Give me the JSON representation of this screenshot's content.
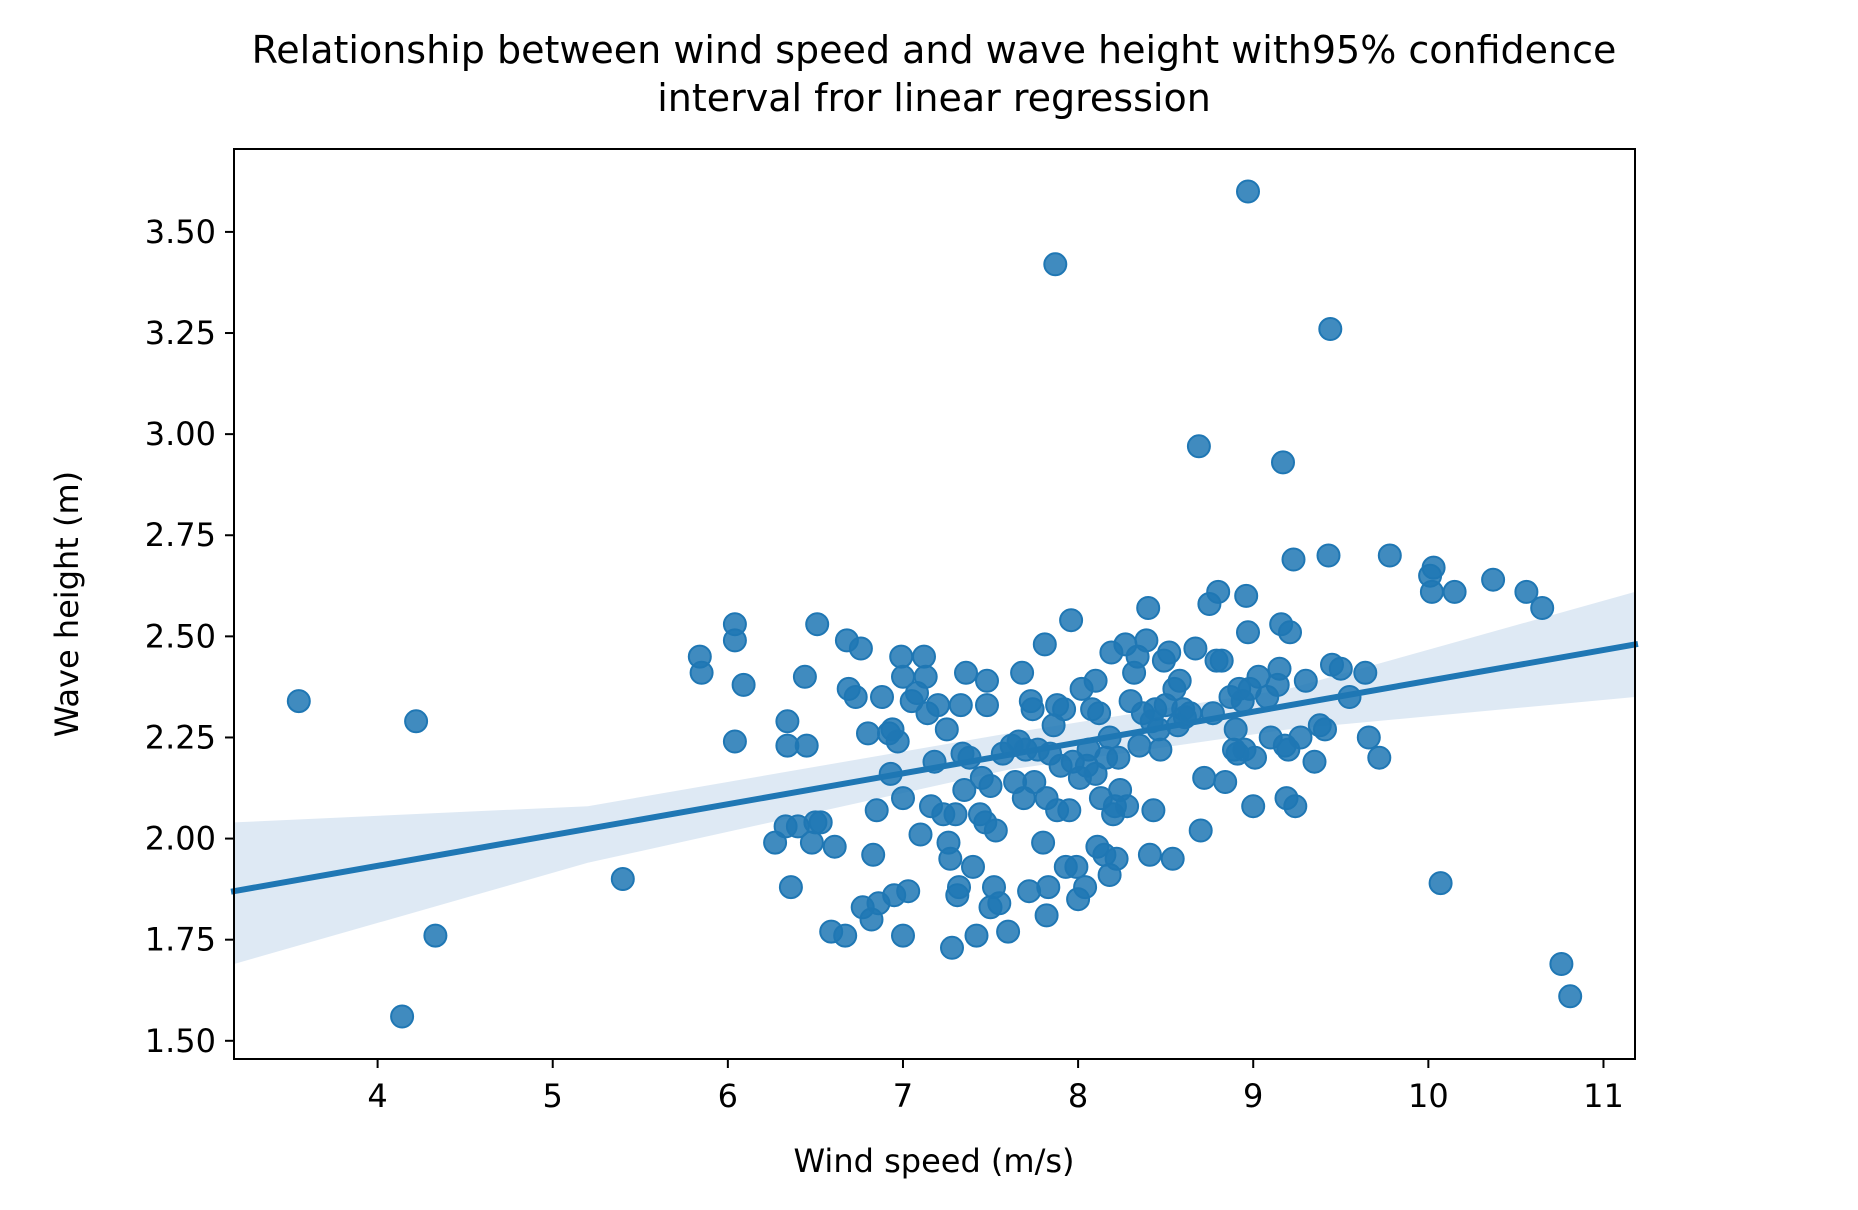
{
  "chart_data": {
    "type": "scatter",
    "title_lines": [
      "Relationship between wind speed and wave height with95% confidence",
      "interval fror linear regression"
    ],
    "xlabel": "Wind speed (m/s)",
    "ylabel": "Wave height (m)",
    "xlim": [
      3.18,
      11.18
    ],
    "ylim": [
      1.455,
      3.705
    ],
    "xticks": [
      4,
      5,
      6,
      7,
      8,
      9,
      10,
      11
    ],
    "xtick_labels": [
      "4",
      "5",
      "6",
      "7",
      "8",
      "9",
      "10",
      "11"
    ],
    "yticks": [
      1.5,
      1.75,
      2.0,
      2.25,
      2.5,
      2.75,
      3.0,
      3.25,
      3.5
    ],
    "ytick_labels": [
      "1.50",
      "1.75",
      "2.00",
      "2.25",
      "2.50",
      "2.75",
      "3.00",
      "3.25",
      "3.50"
    ],
    "grid": false,
    "colors": {
      "points": "#1f77b4",
      "line": "#1f77b4",
      "ci_band": "#c8daec"
    },
    "regression": {
      "x": [
        3.18,
        11.18
      ],
      "y": [
        1.87,
        2.48
      ]
    },
    "confidence_interval": {
      "level": "95%",
      "x": [
        3.18,
        5.2,
        7.6,
        9.2,
        11.18
      ],
      "lower": [
        1.69,
        1.94,
        2.17,
        2.27,
        2.35
      ],
      "upper": [
        2.04,
        2.08,
        2.26,
        2.37,
        2.61
      ]
    },
    "points": [
      [
        3.55,
        2.34
      ],
      [
        4.22,
        2.29
      ],
      [
        4.14,
        1.56
      ],
      [
        4.33,
        1.76
      ],
      [
        5.4,
        1.9
      ],
      [
        5.84,
        2.45
      ],
      [
        5.85,
        2.41
      ],
      [
        6.04,
        2.53
      ],
      [
        6.04,
        2.49
      ],
      [
        6.04,
        2.24
      ],
      [
        6.09,
        2.38
      ],
      [
        6.27,
        1.99
      ],
      [
        6.33,
        2.03
      ],
      [
        6.34,
        2.29
      ],
      [
        6.34,
        2.23
      ],
      [
        6.36,
        1.88
      ],
      [
        6.4,
        2.03
      ],
      [
        6.44,
        2.4
      ],
      [
        6.45,
        2.23
      ],
      [
        6.48,
        1.99
      ],
      [
        6.5,
        2.04
      ],
      [
        6.51,
        2.53
      ],
      [
        6.53,
        2.04
      ],
      [
        6.59,
        1.77
      ],
      [
        6.61,
        1.98
      ],
      [
        6.67,
        1.76
      ],
      [
        6.68,
        2.49
      ],
      [
        6.69,
        2.37
      ],
      [
        6.73,
        2.35
      ],
      [
        6.76,
        2.47
      ],
      [
        6.77,
        1.83
      ],
      [
        6.8,
        2.26
      ],
      [
        6.82,
        1.8
      ],
      [
        6.83,
        1.96
      ],
      [
        6.85,
        2.07
      ],
      [
        6.86,
        1.84
      ],
      [
        6.88,
        2.35
      ],
      [
        6.92,
        2.26
      ],
      [
        6.93,
        2.16
      ],
      [
        6.94,
        2.27
      ],
      [
        6.95,
        1.86
      ],
      [
        6.97,
        2.24
      ],
      [
        6.99,
        2.45
      ],
      [
        7.0,
        2.4
      ],
      [
        7.0,
        2.1
      ],
      [
        7.0,
        1.76
      ],
      [
        7.03,
        1.87
      ],
      [
        7.05,
        2.34
      ],
      [
        7.08,
        2.36
      ],
      [
        7.1,
        2.01
      ],
      [
        7.12,
        2.45
      ],
      [
        7.13,
        2.4
      ],
      [
        7.14,
        2.31
      ],
      [
        7.16,
        2.08
      ],
      [
        7.18,
        2.19
      ],
      [
        7.2,
        2.33
      ],
      [
        7.23,
        2.06
      ],
      [
        7.25,
        2.27
      ],
      [
        7.26,
        1.99
      ],
      [
        7.27,
        1.95
      ],
      [
        7.28,
        1.73
      ],
      [
        7.3,
        2.06
      ],
      [
        7.31,
        1.86
      ],
      [
        7.32,
        1.88
      ],
      [
        7.33,
        2.33
      ],
      [
        7.34,
        2.21
      ],
      [
        7.35,
        2.12
      ],
      [
        7.36,
        2.41
      ],
      [
        7.38,
        2.2
      ],
      [
        7.4,
        1.93
      ],
      [
        7.42,
        1.76
      ],
      [
        7.44,
        2.06
      ],
      [
        7.45,
        2.15
      ],
      [
        7.47,
        2.04
      ],
      [
        7.48,
        2.39
      ],
      [
        7.48,
        2.33
      ],
      [
        7.5,
        2.13
      ],
      [
        7.5,
        1.83
      ],
      [
        7.52,
        1.88
      ],
      [
        7.53,
        2.02
      ],
      [
        7.55,
        1.84
      ],
      [
        7.57,
        2.21
      ],
      [
        7.6,
        1.77
      ],
      [
        7.62,
        2.23
      ],
      [
        7.64,
        2.14
      ],
      [
        7.66,
        2.24
      ],
      [
        7.68,
        2.41
      ],
      [
        7.69,
        2.1
      ],
      [
        7.7,
        2.22
      ],
      [
        7.72,
        1.87
      ],
      [
        7.73,
        2.34
      ],
      [
        7.74,
        2.32
      ],
      [
        7.75,
        2.14
      ],
      [
        7.77,
        2.22
      ],
      [
        7.8,
        1.99
      ],
      [
        7.81,
        2.48
      ],
      [
        7.82,
        2.1
      ],
      [
        7.82,
        1.81
      ],
      [
        7.83,
        1.88
      ],
      [
        7.84,
        2.21
      ],
      [
        7.86,
        2.28
      ],
      [
        7.87,
        3.42
      ],
      [
        7.88,
        2.33
      ],
      [
        7.88,
        2.07
      ],
      [
        7.9,
        2.18
      ],
      [
        7.92,
        2.32
      ],
      [
        7.93,
        1.93
      ],
      [
        7.95,
        2.07
      ],
      [
        7.96,
        2.54
      ],
      [
        7.97,
        2.19
      ],
      [
        7.99,
        1.93
      ],
      [
        8.0,
        1.85
      ],
      [
        8.01,
        2.15
      ],
      [
        8.02,
        2.37
      ],
      [
        8.04,
        1.88
      ],
      [
        8.05,
        2.18
      ],
      [
        8.06,
        2.22
      ],
      [
        8.08,
        2.32
      ],
      [
        8.1,
        2.39
      ],
      [
        8.1,
        2.16
      ],
      [
        8.11,
        1.98
      ],
      [
        8.12,
        2.31
      ],
      [
        8.13,
        2.1
      ],
      [
        8.15,
        1.96
      ],
      [
        8.16,
        2.2
      ],
      [
        8.18,
        2.25
      ],
      [
        8.18,
        1.91
      ],
      [
        8.19,
        2.46
      ],
      [
        8.2,
        2.06
      ],
      [
        8.21,
        2.08
      ],
      [
        8.22,
        1.95
      ],
      [
        8.23,
        2.2
      ],
      [
        8.24,
        2.12
      ],
      [
        8.27,
        2.48
      ],
      [
        8.28,
        2.08
      ],
      [
        8.3,
        2.34
      ],
      [
        8.32,
        2.41
      ],
      [
        8.34,
        2.45
      ],
      [
        8.35,
        2.23
      ],
      [
        8.37,
        2.31
      ],
      [
        8.39,
        2.49
      ],
      [
        8.4,
        2.57
      ],
      [
        8.41,
        1.96
      ],
      [
        8.42,
        2.29
      ],
      [
        8.43,
        2.07
      ],
      [
        8.44,
        2.32
      ],
      [
        8.46,
        2.27
      ],
      [
        8.47,
        2.22
      ],
      [
        8.49,
        2.44
      ],
      [
        8.5,
        2.33
      ],
      [
        8.52,
        2.46
      ],
      [
        8.54,
        1.95
      ],
      [
        8.55,
        2.37
      ],
      [
        8.57,
        2.28
      ],
      [
        8.58,
        2.39
      ],
      [
        8.6,
        2.32
      ],
      [
        8.61,
        2.3
      ],
      [
        8.64,
        2.31
      ],
      [
        8.67,
        2.47
      ],
      [
        8.69,
        2.97
      ],
      [
        8.7,
        2.02
      ],
      [
        8.72,
        2.15
      ],
      [
        8.75,
        2.58
      ],
      [
        8.77,
        2.31
      ],
      [
        8.79,
        2.44
      ],
      [
        8.8,
        2.61
      ],
      [
        8.82,
        2.44
      ],
      [
        8.84,
        2.14
      ],
      [
        8.87,
        2.35
      ],
      [
        8.89,
        2.22
      ],
      [
        8.9,
        2.27
      ],
      [
        8.91,
        2.21
      ],
      [
        8.92,
        2.37
      ],
      [
        8.94,
        2.34
      ],
      [
        8.95,
        2.22
      ],
      [
        8.96,
        2.6
      ],
      [
        8.97,
        2.51
      ],
      [
        8.97,
        3.6
      ],
      [
        8.98,
        2.37
      ],
      [
        9.0,
        2.08
      ],
      [
        9.01,
        2.2
      ],
      [
        9.03,
        2.4
      ],
      [
        9.08,
        2.35
      ],
      [
        9.1,
        2.25
      ],
      [
        9.14,
        2.38
      ],
      [
        9.15,
        2.42
      ],
      [
        9.16,
        2.53
      ],
      [
        9.17,
        2.93
      ],
      [
        9.18,
        2.23
      ],
      [
        9.19,
        2.1
      ],
      [
        9.2,
        2.22
      ],
      [
        9.21,
        2.51
      ],
      [
        9.23,
        2.69
      ],
      [
        9.24,
        2.08
      ],
      [
        9.27,
        2.25
      ],
      [
        9.3,
        2.39
      ],
      [
        9.35,
        2.19
      ],
      [
        9.38,
        2.28
      ],
      [
        9.41,
        2.27
      ],
      [
        9.43,
        2.7
      ],
      [
        9.44,
        3.26
      ],
      [
        9.45,
        2.43
      ],
      [
        9.5,
        2.42
      ],
      [
        9.55,
        2.35
      ],
      [
        9.64,
        2.41
      ],
      [
        9.66,
        2.25
      ],
      [
        9.72,
        2.2
      ],
      [
        9.78,
        2.7
      ],
      [
        10.01,
        2.65
      ],
      [
        10.02,
        2.61
      ],
      [
        10.03,
        2.67
      ],
      [
        10.07,
        1.89
      ],
      [
        10.15,
        2.61
      ],
      [
        10.37,
        2.64
      ],
      [
        10.56,
        2.61
      ],
      [
        10.65,
        2.57
      ],
      [
        10.76,
        1.69
      ],
      [
        10.81,
        1.61
      ]
    ]
  }
}
